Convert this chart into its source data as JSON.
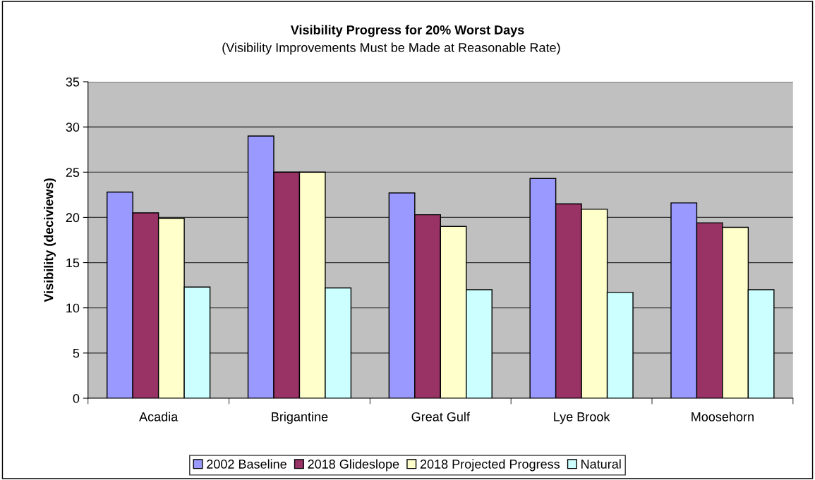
{
  "chart_data": {
    "type": "bar",
    "title": "Visibility Progress for 20% Worst Days",
    "subtitle": "(Visibility Improvements Must be Made at Reasonable Rate)",
    "ylabel": "Visibility (deciviews)",
    "categories": [
      "Acadia",
      "Brigantine",
      "Great Gulf",
      "Lye Brook",
      "Moosehorn"
    ],
    "series": [
      {
        "name": "2002 Baseline",
        "color": "#9999ff",
        "values": [
          22.8,
          29.0,
          22.7,
          24.3,
          21.6
        ]
      },
      {
        "name": "2018 Glideslope",
        "color": "#993366",
        "values": [
          20.5,
          25.0,
          20.3,
          21.5,
          19.4
        ]
      },
      {
        "name": "2018 Projected Progress",
        "color": "#ffffcc",
        "values": [
          19.9,
          25.0,
          19.0,
          20.9,
          18.9
        ]
      },
      {
        "name": "Natural",
        "color": "#ccffff",
        "values": [
          12.3,
          12.2,
          12.0,
          11.7,
          12.0
        ]
      }
    ],
    "ylim": [
      0,
      35
    ],
    "yticks": [
      0,
      5,
      10,
      15,
      20,
      25,
      30,
      35
    ],
    "grid": "y",
    "legend": "bottom"
  }
}
